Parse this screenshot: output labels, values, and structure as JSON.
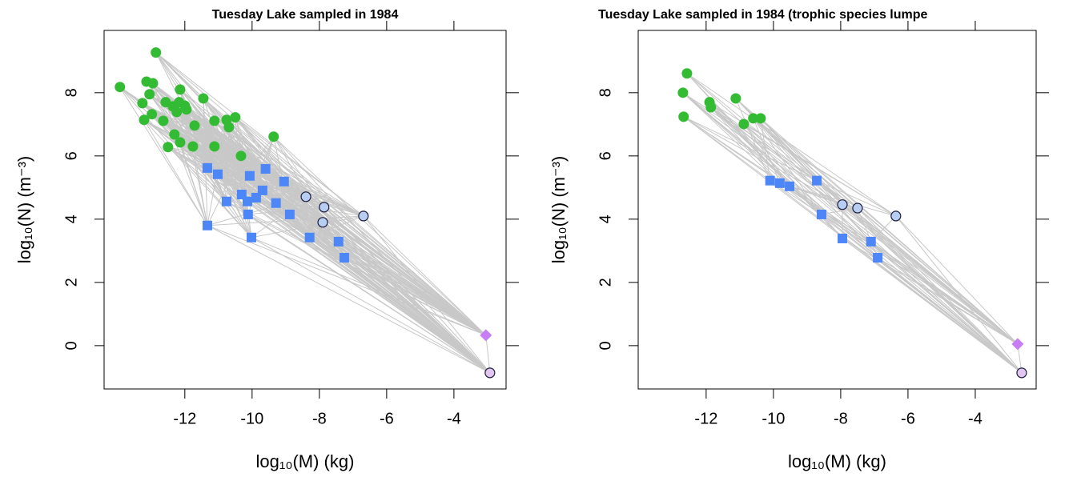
{
  "chart_data": [
    {
      "type": "scatter",
      "title": "Tuesday Lake sampled in 1984",
      "x_label": "log₁₀(M) (kg)",
      "y_label": "log₁₀(N) (m⁻³)",
      "xlim": [
        -14.4,
        -2.45
      ],
      "ylim": [
        -1.37,
        9.97
      ],
      "xticks": [
        -12,
        -10,
        -8,
        -6,
        -4
      ],
      "yticks": [
        0,
        2,
        4,
        6,
        8
      ],
      "link_color": "#c8c8c8",
      "series": [
        {
          "color": "#33bb33",
          "marker": "circle",
          "x": [
            -13.93,
            -13.14,
            -12.86,
            -12.95,
            -13.05,
            -13.26,
            -13.21,
            -12.98,
            -12.64,
            -12.57,
            -12.36,
            -12.24,
            -12.14,
            -12.17,
            -12.0,
            -11.95,
            -12.5,
            -12.31,
            -12.14,
            -11.71,
            -11.76,
            -11.45,
            -11.12,
            -11.12,
            -10.76,
            -10.69,
            -10.5,
            -10.33,
            -9.36
          ],
          "values": [
            8.18,
            8.35,
            9.27,
            8.3,
            7.95,
            7.67,
            7.14,
            7.32,
            7.11,
            7.7,
            7.57,
            7.39,
            8.1,
            7.7,
            7.59,
            7.47,
            6.28,
            6.68,
            6.43,
            6.96,
            6.3,
            7.82,
            7.11,
            6.3,
            7.14,
            6.91,
            7.22,
            6.0,
            6.61
          ]
        },
        {
          "color": "#4d86f7",
          "marker": "square",
          "x": [
            -11.33,
            -11.02,
            -10.76,
            -11.33,
            -10.31,
            -10.14,
            -10.07,
            -9.88,
            -10.12,
            -10.02,
            -9.69,
            -9.6,
            -9.29,
            -9.05,
            -8.88,
            -8.29,
            -7.43,
            -7.26
          ],
          "values": [
            5.62,
            5.42,
            4.56,
            3.8,
            4.78,
            4.56,
            5.37,
            4.68,
            4.15,
            3.42,
            4.91,
            5.59,
            4.51,
            5.19,
            4.15,
            3.42,
            3.29,
            2.78
          ]
        },
        {
          "color": "#b7cdf2",
          "marker": "circle-outline",
          "x": [
            -8.4,
            -7.86,
            -7.9,
            -6.69
          ],
          "values": [
            4.71,
            4.38,
            3.9,
            4.1
          ]
        },
        {
          "color": "#c77df3",
          "marker": "diamond",
          "x": [
            -3.05
          ],
          "values": [
            0.33
          ]
        },
        {
          "color": "#e3c6f0",
          "marker": "circle-outline",
          "x": [
            -2.93
          ],
          "values": [
            -0.86
          ]
        }
      ]
    },
    {
      "type": "scatter",
      "title": "Tuesday Lake sampled in 1984 (trophic species lumpe",
      "x_label": "log₁₀(M) (kg)",
      "y_label": "log₁₀(N) (m⁻³)",
      "xlim": [
        -14.02,
        -2.19
      ],
      "ylim": [
        -1.37,
        9.97
      ],
      "xticks": [
        -12,
        -10,
        -8,
        -6,
        -4
      ],
      "yticks": [
        0,
        2,
        4,
        6,
        8
      ],
      "link_color": "#c8c8c8",
      "series": [
        {
          "color": "#33bb33",
          "marker": "circle",
          "x": [
            -12.57,
            -12.69,
            -12.67,
            -11.9,
            -11.86,
            -11.12,
            -10.88,
            -10.6,
            -10.38
          ],
          "values": [
            8.61,
            8.0,
            7.24,
            7.7,
            7.54,
            7.82,
            7.01,
            7.19,
            7.19
          ]
        },
        {
          "color": "#4d86f7",
          "marker": "square",
          "x": [
            -10.1,
            -9.81,
            -9.52,
            -8.71,
            -8.57,
            -7.95,
            -7.1,
            -6.9
          ],
          "values": [
            5.22,
            5.14,
            5.04,
            5.22,
            4.15,
            3.39,
            3.29,
            2.78
          ]
        },
        {
          "color": "#b7cdf2",
          "marker": "circle-outline",
          "x": [
            -7.95,
            -7.5,
            -6.36
          ],
          "values": [
            4.46,
            4.35,
            4.1
          ]
        },
        {
          "color": "#c77df3",
          "marker": "diamond",
          "x": [
            -2.74
          ],
          "values": [
            0.05
          ]
        },
        {
          "color": "#e3c6f0",
          "marker": "circle-outline",
          "x": [
            -2.62
          ],
          "values": [
            -0.86
          ]
        }
      ]
    }
  ]
}
